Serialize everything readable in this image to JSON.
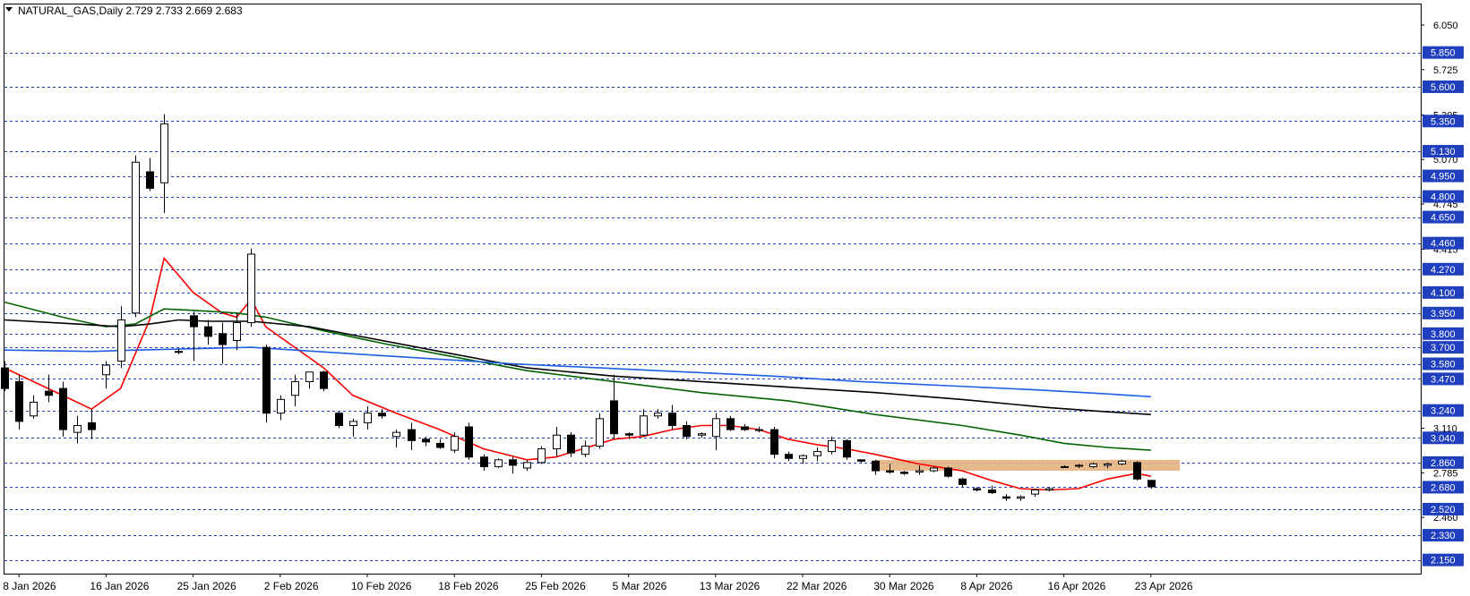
{
  "window": {
    "title": "NATURAL_GAS,Daily  2.729 2.733 2.669 2.683",
    "menu_icon": "triangle-down-icon"
  },
  "chart_data": {
    "type": "candlestick",
    "symbol": "NATURAL_GAS",
    "timeframe": "Daily",
    "ohlc_header": [
      2.729,
      2.733,
      2.669,
      2.683
    ],
    "ylim": [
      2.05,
      6.2
    ],
    "grid": false,
    "price_ticks": [
      "6.050",
      "5.725",
      "5.395",
      "5.070",
      "4.745",
      "4.415",
      "3.110",
      "2.785",
      "2.460"
    ],
    "level_lines": [
      5.85,
      5.6,
      5.35,
      5.13,
      4.95,
      4.8,
      4.65,
      4.46,
      4.27,
      4.1,
      3.95,
      3.8,
      3.7,
      3.58,
      3.47,
      3.24,
      3.04,
      2.86,
      2.68,
      2.52,
      2.33,
      2.15
    ],
    "level_labels": [
      "5.850",
      "5.600",
      "5.350",
      "5.130",
      "4.950",
      "4.800",
      "4.650",
      "4.460",
      "4.270",
      "4.100",
      "3.950",
      "3.800",
      "3.700",
      "3.580",
      "3.470",
      "3.240",
      "3.040",
      "2.860",
      "2.680",
      "2.520",
      "2.330",
      "2.150"
    ],
    "date_labels": [
      "8 Jan 2026",
      "16 Jan 2026",
      "25 Jan 2026",
      "2 Feb 2026",
      "10 Feb 2026",
      "18 Feb 2026",
      "25 Feb 2026",
      "5 Mar 2026",
      "13 Mar 2026",
      "22 Mar 2026",
      "30 Mar 2026",
      "8 Apr 2026",
      "16 Apr 2026",
      "23 Apr 2026"
    ],
    "date_label_bars": [
      1,
      7,
      13,
      19,
      25,
      31,
      37,
      43,
      49,
      55,
      61,
      67,
      73,
      79
    ],
    "candles": [
      [
        3.55,
        3.6,
        3.38,
        3.4
      ],
      [
        3.45,
        3.5,
        3.1,
        3.16
      ],
      [
        3.2,
        3.35,
        3.18,
        3.3
      ],
      [
        3.38,
        3.5,
        3.3,
        3.35
      ],
      [
        3.4,
        3.45,
        3.05,
        3.1
      ],
      [
        3.08,
        3.2,
        3.0,
        3.13
      ],
      [
        3.15,
        3.25,
        3.03,
        3.1
      ],
      [
        3.5,
        3.6,
        3.4,
        3.57
      ],
      [
        3.6,
        4.0,
        3.55,
        3.9
      ],
      [
        3.95,
        5.1,
        3.92,
        5.05
      ],
      [
        4.98,
        5.08,
        4.84,
        4.86
      ],
      [
        4.9,
        5.4,
        4.68,
        5.33
      ],
      [
        3.67,
        3.69,
        3.65,
        3.67
      ],
      [
        3.93,
        3.96,
        3.6,
        3.85
      ],
      [
        3.85,
        3.9,
        3.72,
        3.78
      ],
      [
        3.8,
        3.88,
        3.58,
        3.72
      ],
      [
        3.75,
        3.95,
        3.68,
        3.88
      ],
      [
        3.88,
        4.42,
        3.85,
        4.38
      ],
      [
        3.7,
        3.72,
        3.15,
        3.22
      ],
      [
        3.22,
        3.35,
        3.17,
        3.32
      ],
      [
        3.35,
        3.5,
        3.27,
        3.45
      ],
      [
        3.45,
        3.5,
        3.4,
        3.52
      ],
      [
        3.52,
        3.53,
        3.38,
        3.4
      ],
      [
        3.22,
        3.23,
        3.11,
        3.13
      ],
      [
        3.13,
        3.18,
        3.05,
        3.16
      ],
      [
        3.15,
        3.27,
        3.1,
        3.22
      ],
      [
        3.22,
        3.25,
        3.18,
        3.2
      ],
      [
        3.05,
        3.1,
        2.97,
        3.08
      ],
      [
        3.1,
        3.15,
        2.95,
        3.02
      ],
      [
        3.03,
        3.05,
        2.98,
        3.01
      ],
      [
        3.0,
        3.03,
        2.96,
        2.97
      ],
      [
        2.95,
        3.08,
        2.93,
        3.05
      ],
      [
        3.12,
        3.15,
        2.88,
        2.9
      ],
      [
        2.9,
        2.92,
        2.8,
        2.83
      ],
      [
        2.83,
        2.89,
        2.82,
        2.88
      ],
      [
        2.88,
        2.9,
        2.78,
        2.84
      ],
      [
        2.82,
        2.88,
        2.8,
        2.86
      ],
      [
        2.86,
        2.98,
        2.85,
        2.96
      ],
      [
        2.96,
        3.12,
        2.9,
        3.06
      ],
      [
        3.06,
        3.08,
        2.9,
        2.93
      ],
      [
        2.92,
        3.02,
        2.9,
        2.98
      ],
      [
        2.98,
        3.22,
        2.96,
        3.18
      ],
      [
        3.31,
        3.5,
        3.03,
        3.07
      ],
      [
        3.07,
        3.08,
        3.03,
        3.06
      ],
      [
        3.06,
        3.25,
        3.05,
        3.2
      ],
      [
        3.2,
        3.25,
        3.18,
        3.22
      ],
      [
        3.22,
        3.28,
        3.1,
        3.13
      ],
      [
        3.13,
        3.16,
        3.03,
        3.05
      ],
      [
        3.06,
        3.08,
        3.04,
        3.07
      ],
      [
        3.05,
        3.22,
        2.95,
        3.18
      ],
      [
        3.18,
        3.2,
        3.09,
        3.1
      ],
      [
        3.12,
        3.14,
        3.09,
        3.1
      ],
      [
        3.1,
        3.12,
        3.08,
        3.1
      ],
      [
        3.1,
        3.12,
        2.89,
        2.92
      ],
      [
        2.92,
        2.94,
        2.87,
        2.89
      ],
      [
        2.89,
        2.92,
        2.85,
        2.91
      ],
      [
        2.91,
        2.97,
        2.87,
        2.94
      ],
      [
        2.94,
        3.05,
        2.92,
        3.02
      ],
      [
        3.02,
        3.03,
        2.88,
        2.9
      ],
      [
        2.88,
        2.88,
        2.86,
        2.87
      ],
      [
        2.87,
        2.88,
        2.77,
        2.8
      ],
      [
        2.8,
        2.85,
        2.78,
        2.79
      ],
      [
        2.79,
        2.8,
        2.77,
        2.78
      ],
      [
        2.79,
        2.84,
        2.77,
        2.8
      ],
      [
        2.8,
        2.83,
        2.79,
        2.82
      ],
      [
        2.82,
        2.83,
        2.75,
        2.76
      ],
      [
        2.74,
        2.75,
        2.68,
        2.7
      ],
      [
        2.67,
        2.68,
        2.65,
        2.66
      ],
      [
        2.66,
        2.69,
        2.63,
        2.64
      ],
      [
        2.61,
        2.63,
        2.58,
        2.6
      ],
      [
        2.6,
        2.62,
        2.58,
        2.61
      ],
      [
        2.63,
        2.67,
        2.61,
        2.66
      ],
      [
        2.66,
        2.68,
        2.65,
        2.67
      ],
      [
        2.83,
        2.84,
        2.82,
        2.83
      ],
      [
        2.84,
        2.85,
        2.82,
        2.84
      ],
      [
        2.83,
        2.86,
        2.82,
        2.85
      ],
      [
        2.84,
        2.86,
        2.82,
        2.85
      ],
      [
        2.85,
        2.88,
        2.84,
        2.87
      ],
      [
        2.86,
        2.87,
        2.73,
        2.74
      ],
      [
        2.73,
        2.733,
        2.669,
        2.683
      ]
    ],
    "moving_averages": [
      {
        "color": "#ff0000",
        "points": [
          [
            0,
            3.55
          ],
          [
            3,
            3.4
          ],
          [
            6,
            3.25
          ],
          [
            8,
            3.4
          ],
          [
            10,
            3.9
          ],
          [
            11,
            4.35
          ],
          [
            13,
            4.1
          ],
          [
            15,
            3.95
          ],
          [
            16,
            3.92
          ],
          [
            17,
            4.05
          ],
          [
            18,
            3.85
          ],
          [
            20,
            3.7
          ],
          [
            22,
            3.55
          ],
          [
            24,
            3.35
          ],
          [
            27,
            3.22
          ],
          [
            30,
            3.1
          ],
          [
            33,
            2.96
          ],
          [
            36,
            2.88
          ],
          [
            38,
            2.9
          ],
          [
            42,
            3.03
          ],
          [
            44,
            3.05
          ],
          [
            46,
            3.1
          ],
          [
            48,
            3.13
          ],
          [
            50,
            3.13
          ],
          [
            52,
            3.1
          ],
          [
            54,
            3.03
          ],
          [
            56,
            2.99
          ],
          [
            58,
            2.96
          ],
          [
            60,
            2.92
          ],
          [
            63,
            2.85
          ],
          [
            66,
            2.8
          ],
          [
            68,
            2.73
          ],
          [
            70,
            2.67
          ],
          [
            72,
            2.66
          ],
          [
            74,
            2.67
          ],
          [
            76,
            2.74
          ],
          [
            78,
            2.78
          ],
          [
            79,
            2.76
          ]
        ]
      },
      {
        "color": "#006400",
        "points": [
          [
            0,
            4.03
          ],
          [
            4,
            3.92
          ],
          [
            7,
            3.85
          ],
          [
            9,
            3.87
          ],
          [
            11,
            3.98
          ],
          [
            13,
            3.97
          ],
          [
            16,
            3.95
          ],
          [
            18,
            3.92
          ],
          [
            22,
            3.82
          ],
          [
            26,
            3.73
          ],
          [
            30,
            3.65
          ],
          [
            36,
            3.53
          ],
          [
            42,
            3.45
          ],
          [
            48,
            3.37
          ],
          [
            54,
            3.31
          ],
          [
            60,
            3.21
          ],
          [
            66,
            3.13
          ],
          [
            70,
            3.06
          ],
          [
            73,
            3.0
          ],
          [
            76,
            2.97
          ],
          [
            79,
            2.95
          ]
        ]
      },
      {
        "color": "#000000",
        "points": [
          [
            0,
            3.9
          ],
          [
            5,
            3.87
          ],
          [
            8,
            3.85
          ],
          [
            10,
            3.87
          ],
          [
            12,
            3.9
          ],
          [
            14,
            3.89
          ],
          [
            17,
            3.89
          ],
          [
            21,
            3.85
          ],
          [
            25,
            3.77
          ],
          [
            31,
            3.65
          ],
          [
            36,
            3.55
          ],
          [
            42,
            3.49
          ],
          [
            48,
            3.45
          ],
          [
            54,
            3.41
          ],
          [
            60,
            3.37
          ],
          [
            66,
            3.32
          ],
          [
            72,
            3.26
          ],
          [
            76,
            3.23
          ],
          [
            79,
            3.21
          ]
        ]
      },
      {
        "color": "#1e5fe6",
        "points": [
          [
            0,
            3.68
          ],
          [
            6,
            3.67
          ],
          [
            9,
            3.68
          ],
          [
            13,
            3.69
          ],
          [
            17,
            3.7
          ],
          [
            23,
            3.66
          ],
          [
            29,
            3.62
          ],
          [
            35,
            3.58
          ],
          [
            41,
            3.55
          ],
          [
            47,
            3.52
          ],
          [
            53,
            3.49
          ],
          [
            59,
            3.45
          ],
          [
            65,
            3.42
          ],
          [
            71,
            3.39
          ],
          [
            76,
            3.36
          ],
          [
            79,
            3.34
          ]
        ]
      }
    ],
    "zone": {
      "from_bar": 60,
      "to_bar": 81,
      "low": 2.8,
      "high": 2.88,
      "color": "#e3b27f"
    }
  }
}
